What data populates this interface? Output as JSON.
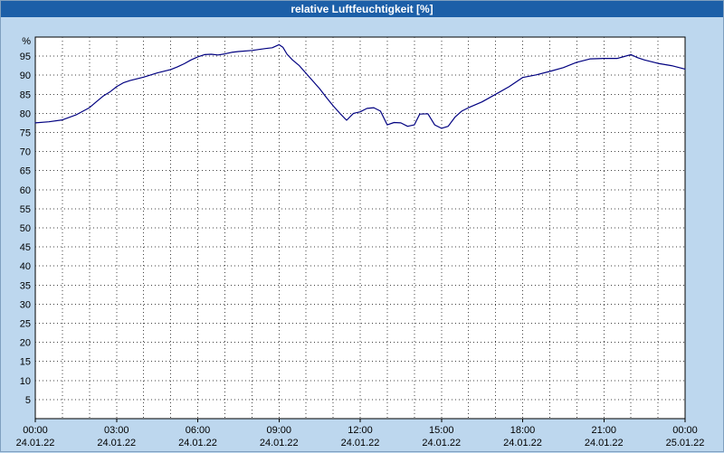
{
  "title": "relative Luftfeuchtigkeit [%]",
  "colors": {
    "titlebar": "#1c5fa8",
    "titlebar_text": "#ffffff",
    "background": "#bdd7ee",
    "plot_background": "#ffffff",
    "plot_border": "#000000",
    "grid": "#404040",
    "line": "#000080",
    "label_text": "#000000"
  },
  "chart_data": {
    "type": "line",
    "title": "relative Luftfeuchtigkeit [%]",
    "xlabel": "",
    "ylabel": "%",
    "ylim": [
      0,
      100
    ],
    "ytick_min": 5,
    "ytick_max": 95,
    "ytick_step": 5,
    "xlim_hours": [
      0,
      24
    ],
    "x_minor_grid_step_hours": 1,
    "x_major_ticks_hours": [
      0,
      3,
      6,
      9,
      12,
      15,
      18,
      21,
      24
    ],
    "x_tick_labels": [
      "00:00",
      "03:00",
      "06:00",
      "09:00",
      "12:00",
      "15:00",
      "18:00",
      "21:00",
      "00:00"
    ],
    "x_date_labels": [
      "24.01.22",
      "24.01.22",
      "24.01.22",
      "24.01.22",
      "24.01.22",
      "24.01.22",
      "24.01.22",
      "24.01.22",
      "25.01.22"
    ],
    "grid": "dotted",
    "legend": "none",
    "series": [
      {
        "name": "relative Luftfeuchtigkeit [%]",
        "points": [
          [
            0,
            77.5
          ],
          [
            0.5,
            77.8
          ],
          [
            1,
            78.3
          ],
          [
            1.5,
            79.6
          ],
          [
            2,
            81.5
          ],
          [
            2.25,
            83
          ],
          [
            2.5,
            84.5
          ],
          [
            2.75,
            85.6
          ],
          [
            3,
            87
          ],
          [
            3.25,
            88
          ],
          [
            3.5,
            88.6
          ],
          [
            4,
            89.5
          ],
          [
            4.5,
            90.6
          ],
          [
            5,
            91.5
          ],
          [
            5.25,
            92.2
          ],
          [
            5.5,
            93
          ],
          [
            5.75,
            94
          ],
          [
            6,
            94.8
          ],
          [
            6.25,
            95.4
          ],
          [
            6.5,
            95.5
          ],
          [
            6.75,
            95.3
          ],
          [
            7,
            95.6
          ],
          [
            7.25,
            96
          ],
          [
            7.5,
            96.2
          ],
          [
            8,
            96.5
          ],
          [
            8.5,
            97
          ],
          [
            8.75,
            97.2
          ],
          [
            9,
            98
          ],
          [
            9.15,
            97.3
          ],
          [
            9.3,
            95.5
          ],
          [
            9.5,
            94
          ],
          [
            9.75,
            92.5
          ],
          [
            10,
            90.5
          ],
          [
            10.25,
            88.5
          ],
          [
            10.5,
            86.5
          ],
          [
            10.75,
            84.2
          ],
          [
            11,
            82
          ],
          [
            11.25,
            80
          ],
          [
            11.5,
            78.2
          ],
          [
            11.75,
            80
          ],
          [
            12,
            80.4
          ],
          [
            12.25,
            81.3
          ],
          [
            12.5,
            81.5
          ],
          [
            12.75,
            80.6
          ],
          [
            13,
            77
          ],
          [
            13.25,
            77.6
          ],
          [
            13.5,
            77.5
          ],
          [
            13.75,
            76.6
          ],
          [
            14,
            77
          ],
          [
            14.2,
            79.8
          ],
          [
            14.5,
            79.9
          ],
          [
            14.75,
            77
          ],
          [
            15,
            76.1
          ],
          [
            15.25,
            76.6
          ],
          [
            15.5,
            79
          ],
          [
            15.75,
            80.6
          ],
          [
            16,
            81.5
          ],
          [
            16.5,
            83
          ],
          [
            17,
            85
          ],
          [
            17.5,
            87
          ],
          [
            18,
            89.4
          ],
          [
            18.5,
            90.1
          ],
          [
            19,
            91
          ],
          [
            19.5,
            92
          ],
          [
            20,
            93.4
          ],
          [
            20.5,
            94.3
          ],
          [
            21,
            94.4
          ],
          [
            21.5,
            94.4
          ],
          [
            21.75,
            94.9
          ],
          [
            22,
            95.4
          ],
          [
            22.25,
            94.6
          ],
          [
            22.5,
            94
          ],
          [
            23,
            93.1
          ],
          [
            23.5,
            92.5
          ],
          [
            24,
            91.6
          ]
        ]
      }
    ]
  }
}
